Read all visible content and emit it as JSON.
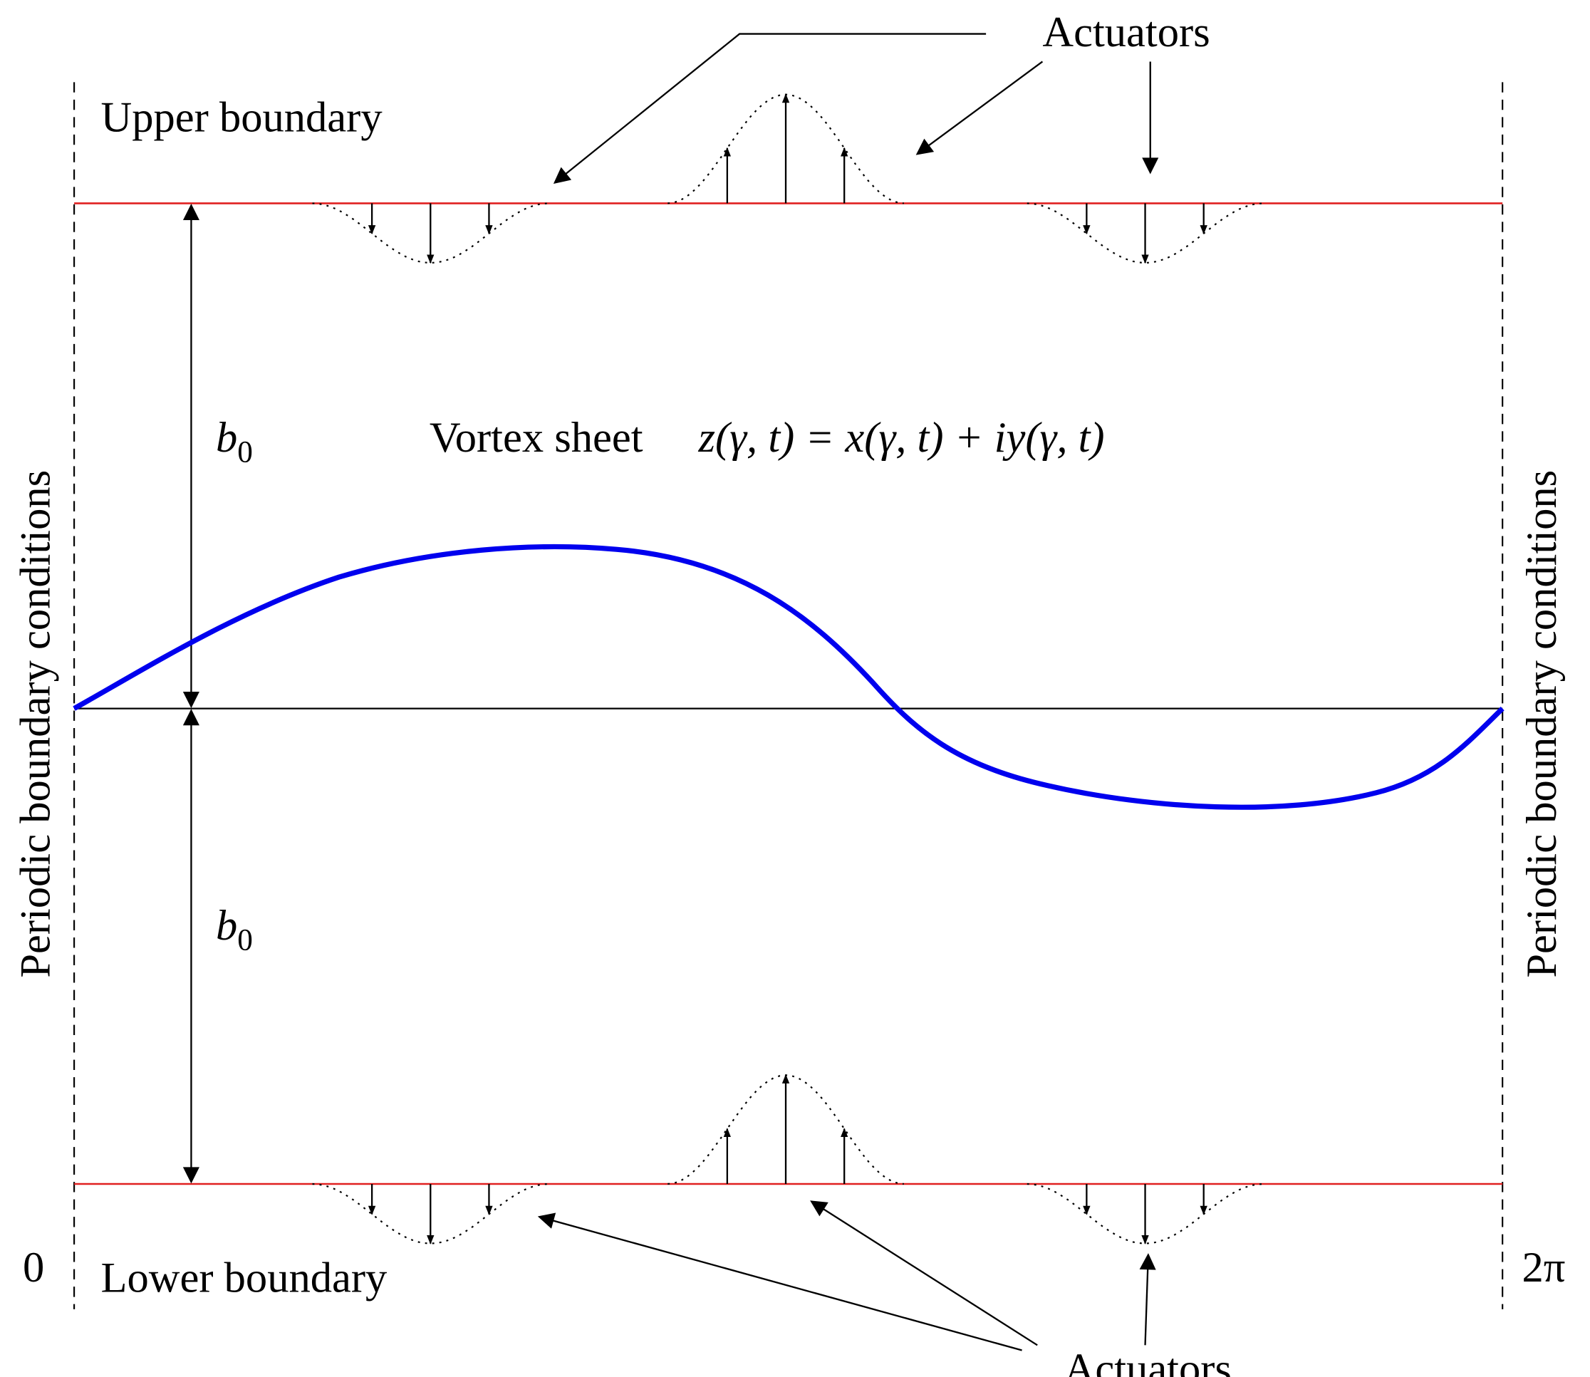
{
  "actuators_top": "Actuators",
  "actuators_bottom": "Actuators",
  "upper_boundary": "Upper boundary",
  "lower_boundary": "Lower boundary",
  "gap_upper": {
    "base": "b",
    "sub": "0"
  },
  "gap_lower": {
    "base": "b",
    "sub": "0"
  },
  "vortex_label": "Vortex sheet",
  "vortex_formula": "z(γ, t) = x(γ, t) + iy(γ, t)",
  "periodic_left": "Periodic boundary conditions",
  "periodic_right": "Periodic boundary conditions",
  "x_start": "0",
  "x_end": "2π"
}
